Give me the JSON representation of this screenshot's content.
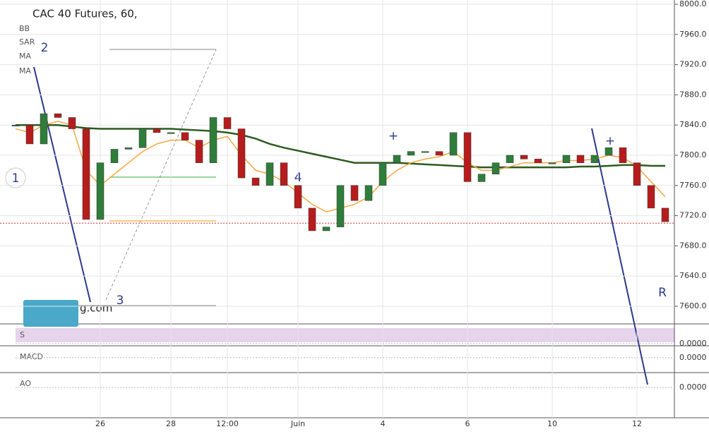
{
  "chart_data": {
    "type": "candlestick",
    "title": "CAC 40 Futures, 60,",
    "indicators": [
      "BB",
      "SAR",
      "MA",
      "MA"
    ],
    "annotations": [
      "1",
      "2",
      "3",
      "4",
      "R",
      "+",
      "+",
      "g.com"
    ],
    "categories": [
      null,
      null,
      null,
      null,
      null,
      null,
      "26",
      null,
      null,
      null,
      null,
      "28",
      null,
      null,
      null,
      "12:00",
      null,
      null,
      null,
      null,
      "Juin",
      null,
      null,
      null,
      null,
      null,
      "4",
      null,
      null,
      null,
      null,
      null,
      "6",
      null,
      null,
      null,
      null,
      null,
      "10",
      null,
      null,
      null,
      null,
      null,
      "12",
      null,
      null
    ],
    "series": [
      {
        "color": "#2f7d3a",
        "values": [
          7840,
          7815,
          7855,
          7850,
          7835,
          7715,
          7790,
          7808,
          7810,
          7835,
          7830,
          7830,
          7820,
          7790,
          7850,
          7835,
          7770,
          7760,
          7790,
          7760,
          7730,
          7700,
          7705,
          7760,
          7740,
          7760,
          7790,
          7800,
          7805,
          7805,
          7800,
          7830,
          7765,
          7775,
          7790,
          7800,
          7795,
          7790,
          7790,
          7800,
          7790,
          7800,
          7810,
          7790,
          7760,
          7730,
          7712
        ]
      },
      {
        "color": "#2d5a1e",
        "values": [
          7840,
          7840,
          7840,
          7840,
          7838,
          7836,
          7835,
          7835,
          7835,
          7835,
          7835,
          7835,
          7834,
          7833,
          7832,
          7830,
          7827,
          7822,
          7815,
          7810,
          7806,
          7802,
          7798,
          7794,
          7790,
          7790,
          7790,
          7790,
          7789,
          7788,
          7787,
          7786,
          7785,
          7784,
          7784,
          7784,
          7784,
          7784,
          7784,
          7784,
          7785,
          7785,
          7786,
          7787,
          7787,
          7786,
          7786
        ]
      },
      {
        "color": "#f5a742",
        "values": [
          7835,
          7830,
          7840,
          7845,
          7840,
          7780,
          7760,
          7775,
          7790,
          7805,
          7815,
          7820,
          7820,
          7810,
          7820,
          7825,
          7800,
          7780,
          7775,
          7765,
          7750,
          7735,
          7725,
          7730,
          7735,
          7745,
          7765,
          7780,
          7790,
          7795,
          7798,
          7805,
          7790,
          7780,
          7780,
          7785,
          7790,
          7790,
          7790,
          7793,
          7793,
          7795,
          7800,
          7797,
          7785,
          7765,
          7745
        ]
      }
    ],
    "last": 7710,
    "last_color": "#d32f2f",
    "ylim": [
      7586.92,
      8005.6
    ],
    "yticks": [
      {
        "value": 7600,
        "label": "7600.0"
      },
      {
        "value": 7640,
        "label": "7640.0"
      },
      {
        "value": 7680,
        "label": "7680.0"
      },
      {
        "value": 7720,
        "label": "7720.0"
      },
      {
        "value": 7760,
        "label": "7760.0"
      },
      {
        "value": 7800,
        "label": "7800.0"
      },
      {
        "value": 7840,
        "label": "7840.0"
      },
      {
        "value": 7880,
        "label": "7880.0"
      },
      {
        "value": 7920,
        "label": "7920.0"
      },
      {
        "value": 7960,
        "label": "7960.0"
      },
      {
        "value": 8000,
        "label": "8000.0"
      }
    ],
    "grid": true,
    "panes": [
      {
        "label": "S",
        "yticks": [
          {
            "value": 0,
            "label": "0.0000"
          }
        ]
      },
      {
        "label": "MACD",
        "yticks": [
          {
            "value": 0,
            "label": "0.0000"
          }
        ]
      },
      {
        "label": "AO",
        "yticks": [
          {
            "value": 0,
            "label": "0.0000"
          }
        ]
      }
    ]
  }
}
